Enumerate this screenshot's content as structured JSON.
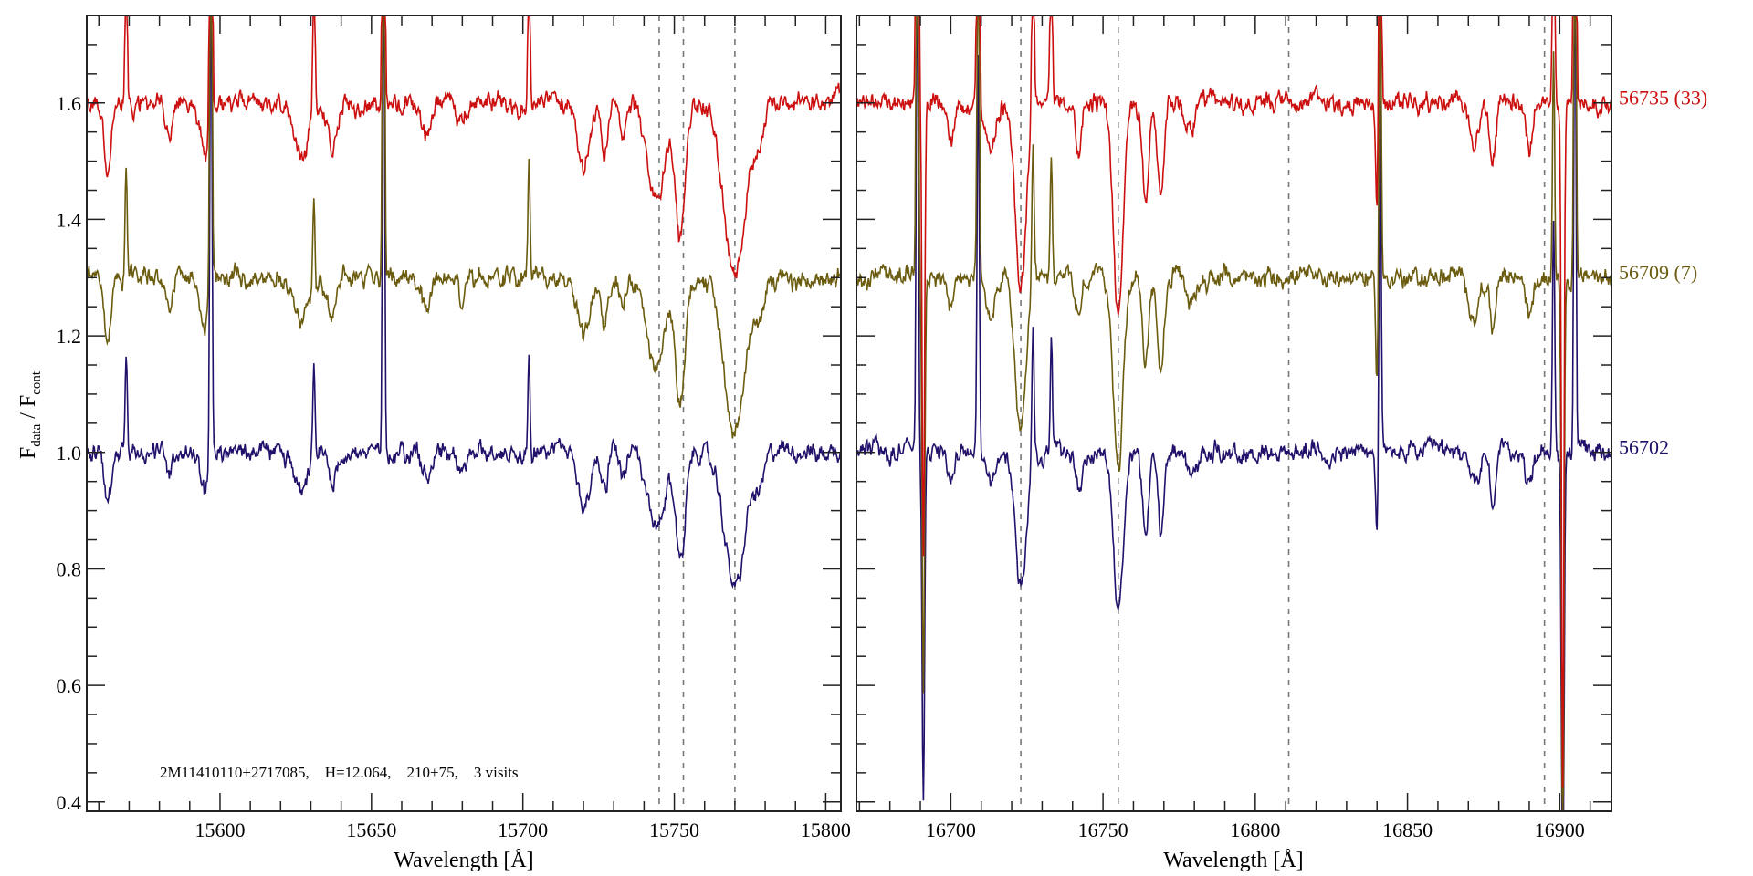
{
  "chart_data": {
    "type": "line",
    "ylabel_main": "F",
    "ylabel_sub1": "data",
    "ylabel_mid": " / F",
    "ylabel_sub2": "cont",
    "xlabel": "Wavelength [Å]",
    "annotation": "2M11410110+2717085,    H=12.064,    210+75,    3 visits",
    "ylim": [
      0.384,
      1.75
    ],
    "yticks": [
      0.4,
      0.6,
      0.8,
      1.0,
      1.2,
      1.4,
      1.6
    ],
    "ytick_labels": [
      "0.4",
      "0.6",
      "0.8",
      "1.0",
      "1.2",
      "1.4",
      "1.6"
    ],
    "panels": [
      {
        "xlim": [
          15556,
          15805
        ],
        "xticks": [
          15600,
          15650,
          15700,
          15750,
          15800
        ],
        "xtick_labels": [
          "15600",
          "15650",
          "15700",
          "15750",
          "15800"
        ],
        "dashed_lines": [
          15745,
          15753,
          15770
        ],
        "absorption": [
          [
            15563,
            0.09,
            1.2
          ],
          [
            15583,
            0.04,
            1
          ],
          [
            15595,
            0.07,
            1.5
          ],
          [
            15627,
            0.07,
            2.5
          ],
          [
            15637,
            0.06,
            1.2
          ],
          [
            15668,
            0.04,
            1.5
          ],
          [
            15680,
            0.03,
            1.5
          ],
          [
            15720,
            0.09,
            2
          ],
          [
            15727,
            0.06,
            1
          ],
          [
            15733,
            0.04,
            1
          ],
          [
            15744,
            0.13,
            3
          ],
          [
            15752,
            0.18,
            1.5
          ],
          [
            15770,
            0.23,
            3.5
          ],
          [
            15778,
            0.05,
            1.5
          ]
        ],
        "emission": [
          [
            15569,
            0.18
          ],
          [
            15597,
            0.9
          ],
          [
            15631,
            0.18
          ],
          [
            15654,
            0.9
          ],
          [
            15702,
            0.19
          ]
        ]
      },
      {
        "xlim": [
          16669,
          16917
        ],
        "xticks": [
          16700,
          16750,
          16800,
          16850,
          16900
        ],
        "xtick_labels": [
          "16700",
          "16750",
          "16800",
          "16850",
          "16900"
        ],
        "dashed_lines": [
          16723,
          16755,
          16811,
          16895
        ],
        "absorption": [
          [
            16691,
            0.6,
            0.4
          ],
          [
            16700,
            0.05,
            1
          ],
          [
            16713,
            0.06,
            1.5
          ],
          [
            16723,
            0.24,
            1.8
          ],
          [
            16742,
            0.06,
            1
          ],
          [
            16755,
            0.28,
            1.6
          ],
          [
            16764,
            0.13,
            1
          ],
          [
            16769,
            0.14,
            1
          ],
          [
            16779,
            0.04,
            1.5
          ],
          [
            16840,
            0.15,
            0.4
          ],
          [
            16872,
            0.06,
            1.5
          ],
          [
            16878,
            0.08,
            1
          ],
          [
            16890,
            0.06,
            1
          ],
          [
            16901,
            0.9,
            0.4
          ]
        ],
        "emission": [
          [
            16689,
            0.9
          ],
          [
            16709,
            0.7
          ],
          [
            16727,
            0.25
          ],
          [
            16733,
            0.2
          ],
          [
            16841,
            0.6
          ],
          [
            16898,
            0.4
          ],
          [
            16905,
            0.9
          ]
        ]
      }
    ],
    "series": [
      {
        "name": "56702",
        "label": "56702",
        "offset": 0.0,
        "color": "#22106a",
        "seed": 3
      },
      {
        "name": "56709 (7)",
        "label": "56709 (7)",
        "offset": 0.3,
        "color": "#6b5c10",
        "seed": 7
      },
      {
        "name": "56735 (33)",
        "label": "56735 (33)",
        "offset": 0.6,
        "color": "#cc1010",
        "seed": 11
      }
    ]
  }
}
